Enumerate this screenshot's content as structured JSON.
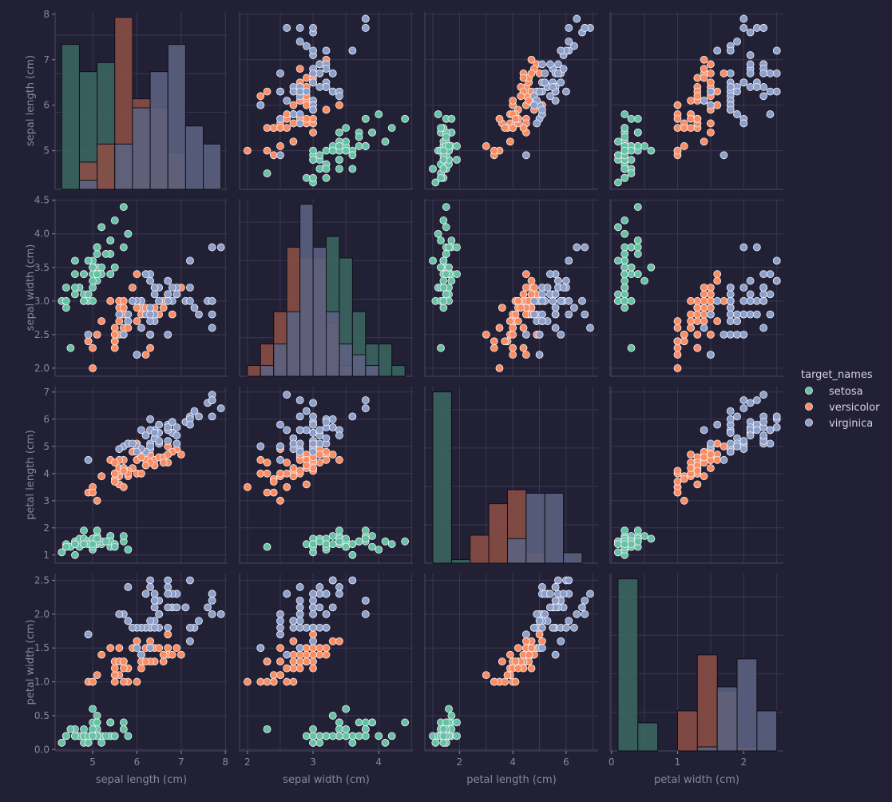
{
  "chart_data": {
    "type": "scatter",
    "variables": [
      "sepal length (cm)",
      "sepal width (cm)",
      "petal length (cm)",
      "petal width (cm)"
    ],
    "axis_ranges": [
      [
        4.15,
        8.05
      ],
      [
        1.88,
        4.52
      ],
      [
        0.7,
        7.2
      ],
      [
        -0.02,
        2.6
      ]
    ],
    "ticks": [
      [
        5,
        6,
        7,
        8
      ],
      [
        2.0,
        2.5,
        3.0,
        3.5,
        4.0,
        4.5
      ],
      [
        1,
        2,
        3,
        4,
        5,
        6,
        7
      ],
      [
        0.0,
        0.5,
        1.0,
        1.5,
        2.0,
        2.5
      ]
    ],
    "x_tick_labels": [
      [
        "5",
        "6",
        "7",
        "8"
      ],
      [
        "2",
        "3",
        "4"
      ],
      [
        "2",
        "4",
        "6"
      ],
      [
        "0",
        "1",
        "2"
      ]
    ],
    "y_tick_labels": [
      [
        "5",
        "6",
        "7",
        "8"
      ],
      [
        "2.0",
        "2.5",
        "3.0",
        "3.5",
        "4.0",
        "4.5"
      ],
      [
        "1",
        "2",
        "3",
        "4",
        "5",
        "6",
        "7"
      ],
      [
        "0.0",
        "0.5",
        "1.0",
        "1.5",
        "2.0",
        "2.5"
      ]
    ],
    "grid": true,
    "legend": {
      "title": "target_names",
      "placement": "right-center",
      "entries": [
        "setosa",
        "versicolor",
        "virginica"
      ]
    },
    "colors": {
      "setosa": "#66c2a5",
      "versicolor": "#fc8d62",
      "virginica": "#8da0cb",
      "background": "#222034",
      "grid": "#3a3852",
      "tick": "#8a879c"
    },
    "series": [
      {
        "name": "setosa",
        "values": [
          [
            5.1,
            3.5,
            1.4,
            0.2
          ],
          [
            4.9,
            3.0,
            1.4,
            0.2
          ],
          [
            4.7,
            3.2,
            1.3,
            0.2
          ],
          [
            4.6,
            3.1,
            1.5,
            0.2
          ],
          [
            5.0,
            3.6,
            1.4,
            0.2
          ],
          [
            5.4,
            3.9,
            1.7,
            0.4
          ],
          [
            4.6,
            3.4,
            1.4,
            0.3
          ],
          [
            5.0,
            3.4,
            1.5,
            0.2
          ],
          [
            4.4,
            2.9,
            1.4,
            0.2
          ],
          [
            4.9,
            3.1,
            1.5,
            0.1
          ],
          [
            5.4,
            3.7,
            1.5,
            0.2
          ],
          [
            4.8,
            3.4,
            1.6,
            0.2
          ],
          [
            4.8,
            3.0,
            1.4,
            0.1
          ],
          [
            4.3,
            3.0,
            1.1,
            0.1
          ],
          [
            5.8,
            4.0,
            1.2,
            0.2
          ],
          [
            5.7,
            4.4,
            1.5,
            0.4
          ],
          [
            5.4,
            3.9,
            1.3,
            0.4
          ],
          [
            5.1,
            3.5,
            1.4,
            0.3
          ],
          [
            5.7,
            3.8,
            1.7,
            0.3
          ],
          [
            5.1,
            3.8,
            1.5,
            0.3
          ],
          [
            5.4,
            3.4,
            1.7,
            0.2
          ],
          [
            5.1,
            3.7,
            1.5,
            0.4
          ],
          [
            4.6,
            3.6,
            1.0,
            0.2
          ],
          [
            5.1,
            3.3,
            1.7,
            0.5
          ],
          [
            4.8,
            3.4,
            1.9,
            0.2
          ],
          [
            5.0,
            3.0,
            1.6,
            0.2
          ],
          [
            5.0,
            3.4,
            1.6,
            0.4
          ],
          [
            5.2,
            3.5,
            1.5,
            0.2
          ],
          [
            5.2,
            3.4,
            1.4,
            0.2
          ],
          [
            4.7,
            3.2,
            1.6,
            0.2
          ],
          [
            4.8,
            3.1,
            1.6,
            0.2
          ],
          [
            5.4,
            3.4,
            1.5,
            0.4
          ],
          [
            5.2,
            4.1,
            1.5,
            0.1
          ],
          [
            5.5,
            4.2,
            1.4,
            0.2
          ],
          [
            4.9,
            3.1,
            1.5,
            0.2
          ],
          [
            5.0,
            3.2,
            1.2,
            0.2
          ],
          [
            5.5,
            3.5,
            1.3,
            0.2
          ],
          [
            4.9,
            3.6,
            1.4,
            0.1
          ],
          [
            4.4,
            3.0,
            1.3,
            0.2
          ],
          [
            5.1,
            3.4,
            1.5,
            0.2
          ],
          [
            5.0,
            3.5,
            1.3,
            0.3
          ],
          [
            4.5,
            2.3,
            1.3,
            0.3
          ],
          [
            4.4,
            3.2,
            1.3,
            0.2
          ],
          [
            5.0,
            3.5,
            1.6,
            0.6
          ],
          [
            5.1,
            3.8,
            1.9,
            0.4
          ],
          [
            4.8,
            3.0,
            1.4,
            0.3
          ],
          [
            5.1,
            3.8,
            1.6,
            0.2
          ],
          [
            4.6,
            3.2,
            1.4,
            0.2
          ],
          [
            5.3,
            3.7,
            1.5,
            0.2
          ],
          [
            5.0,
            3.3,
            1.4,
            0.2
          ]
        ]
      },
      {
        "name": "versicolor",
        "values": [
          [
            7.0,
            3.2,
            4.7,
            1.4
          ],
          [
            6.4,
            3.2,
            4.5,
            1.5
          ],
          [
            6.9,
            3.1,
            4.9,
            1.5
          ],
          [
            5.5,
            2.3,
            4.0,
            1.3
          ],
          [
            6.5,
            2.8,
            4.6,
            1.5
          ],
          [
            5.7,
            2.8,
            4.5,
            1.3
          ],
          [
            6.3,
            3.3,
            4.7,
            1.6
          ],
          [
            4.9,
            2.4,
            3.3,
            1.0
          ],
          [
            6.6,
            2.9,
            4.6,
            1.3
          ],
          [
            5.2,
            2.7,
            3.9,
            1.4
          ],
          [
            5.0,
            2.0,
            3.5,
            1.0
          ],
          [
            5.9,
            3.0,
            4.2,
            1.5
          ],
          [
            6.0,
            2.2,
            4.0,
            1.0
          ],
          [
            6.1,
            2.9,
            4.7,
            1.4
          ],
          [
            5.6,
            2.9,
            3.6,
            1.3
          ],
          [
            6.7,
            3.1,
            4.4,
            1.4
          ],
          [
            5.6,
            3.0,
            4.5,
            1.5
          ],
          [
            5.8,
            2.7,
            4.1,
            1.0
          ],
          [
            6.2,
            2.2,
            4.5,
            1.5
          ],
          [
            5.6,
            2.5,
            3.9,
            1.1
          ],
          [
            5.9,
            3.2,
            4.8,
            1.8
          ],
          [
            6.1,
            2.8,
            4.0,
            1.3
          ],
          [
            6.3,
            2.5,
            4.9,
            1.5
          ],
          [
            6.1,
            2.8,
            4.7,
            1.2
          ],
          [
            6.4,
            2.9,
            4.3,
            1.3
          ],
          [
            6.6,
            3.0,
            4.4,
            1.4
          ],
          [
            6.8,
            2.8,
            4.8,
            1.4
          ],
          [
            6.7,
            3.0,
            5.0,
            1.7
          ],
          [
            6.0,
            2.9,
            4.5,
            1.5
          ],
          [
            5.7,
            2.6,
            3.5,
            1.0
          ],
          [
            5.5,
            2.4,
            3.8,
            1.1
          ],
          [
            5.5,
            2.4,
            3.7,
            1.0
          ],
          [
            5.8,
            2.7,
            3.9,
            1.2
          ],
          [
            6.0,
            2.7,
            5.1,
            1.6
          ],
          [
            5.4,
            3.0,
            4.5,
            1.5
          ],
          [
            6.0,
            3.4,
            4.5,
            1.6
          ],
          [
            6.7,
            3.1,
            4.7,
            1.5
          ],
          [
            6.3,
            2.3,
            4.4,
            1.3
          ],
          [
            5.6,
            3.0,
            4.1,
            1.3
          ],
          [
            5.5,
            2.5,
            4.0,
            1.3
          ],
          [
            5.5,
            2.6,
            4.4,
            1.2
          ],
          [
            6.1,
            3.0,
            4.6,
            1.4
          ],
          [
            5.8,
            2.6,
            4.0,
            1.2
          ],
          [
            5.0,
            2.3,
            3.3,
            1.0
          ],
          [
            5.6,
            2.7,
            4.2,
            1.3
          ],
          [
            5.7,
            3.0,
            4.2,
            1.2
          ],
          [
            5.7,
            2.9,
            4.2,
            1.3
          ],
          [
            6.2,
            2.9,
            4.3,
            1.3
          ],
          [
            5.1,
            2.5,
            3.0,
            1.1
          ],
          [
            5.7,
            2.8,
            4.1,
            1.3
          ]
        ]
      },
      {
        "name": "virginica",
        "values": [
          [
            6.3,
            3.3,
            6.0,
            2.5
          ],
          [
            5.8,
            2.7,
            5.1,
            1.9
          ],
          [
            7.1,
            3.0,
            5.9,
            2.1
          ],
          [
            6.3,
            2.9,
            5.6,
            1.8
          ],
          [
            6.5,
            3.0,
            5.8,
            2.2
          ],
          [
            7.6,
            3.0,
            6.6,
            2.1
          ],
          [
            4.9,
            2.5,
            4.5,
            1.7
          ],
          [
            7.3,
            2.9,
            6.3,
            1.8
          ],
          [
            6.7,
            2.5,
            5.8,
            1.8
          ],
          [
            7.2,
            3.6,
            6.1,
            2.5
          ],
          [
            6.5,
            3.2,
            5.1,
            2.0
          ],
          [
            6.4,
            2.7,
            5.3,
            1.9
          ],
          [
            6.8,
            3.0,
            5.5,
            2.1
          ],
          [
            5.7,
            2.5,
            5.0,
            2.0
          ],
          [
            5.8,
            2.8,
            5.1,
            2.4
          ],
          [
            6.4,
            3.2,
            5.3,
            2.3
          ],
          [
            6.5,
            3.0,
            5.5,
            1.8
          ],
          [
            7.7,
            3.8,
            6.7,
            2.2
          ],
          [
            7.7,
            2.6,
            6.9,
            2.3
          ],
          [
            6.0,
            2.2,
            5.0,
            1.5
          ],
          [
            6.9,
            3.2,
            5.7,
            2.3
          ],
          [
            5.6,
            2.8,
            4.9,
            2.0
          ],
          [
            7.7,
            2.8,
            6.7,
            2.0
          ],
          [
            6.3,
            2.7,
            4.9,
            1.8
          ],
          [
            6.7,
            3.3,
            5.7,
            2.1
          ],
          [
            7.2,
            3.2,
            6.0,
            1.8
          ],
          [
            6.2,
            2.8,
            4.8,
            1.8
          ],
          [
            6.1,
            3.0,
            4.9,
            1.8
          ],
          [
            6.4,
            2.8,
            5.6,
            2.1
          ],
          [
            7.2,
            3.0,
            5.8,
            1.6
          ],
          [
            7.4,
            2.8,
            6.1,
            1.9
          ],
          [
            7.9,
            3.8,
            6.4,
            2.0
          ],
          [
            6.4,
            2.8,
            5.6,
            2.2
          ],
          [
            6.3,
            2.8,
            5.1,
            1.5
          ],
          [
            6.1,
            2.6,
            5.6,
            1.4
          ],
          [
            7.7,
            3.0,
            6.1,
            2.3
          ],
          [
            6.3,
            3.4,
            5.6,
            2.4
          ],
          [
            6.4,
            3.1,
            5.5,
            1.8
          ],
          [
            6.0,
            3.0,
            4.8,
            1.8
          ],
          [
            6.9,
            3.1,
            5.4,
            2.1
          ],
          [
            6.7,
            3.1,
            5.6,
            2.4
          ],
          [
            6.9,
            3.1,
            5.1,
            2.3
          ],
          [
            5.8,
            2.7,
            5.1,
            1.9
          ],
          [
            6.8,
            3.2,
            5.9,
            2.3
          ],
          [
            6.7,
            3.3,
            5.7,
            2.5
          ],
          [
            6.7,
            3.0,
            5.2,
            2.3
          ],
          [
            6.3,
            2.5,
            5.0,
            1.9
          ],
          [
            6.5,
            3.0,
            5.2,
            2.0
          ],
          [
            6.2,
            3.4,
            5.4,
            2.3
          ],
          [
            5.9,
            3.0,
            5.1,
            1.8
          ]
        ]
      }
    ],
    "histograms": [
      {
        "edges": [
          4.3,
          4.7,
          5.1,
          5.5,
          5.9,
          6.3,
          6.7,
          7.1,
          7.5,
          7.9
        ],
        "counts": {
          "setosa": [
            16,
            13,
            14,
            5,
            1,
            1,
            0,
            0,
            0
          ],
          "versicolor": [
            0,
            3,
            5,
            19,
            10,
            9,
            4,
            0,
            0
          ],
          "virginica": [
            0,
            1,
            0,
            5,
            9,
            13,
            16,
            7,
            5
          ]
        }
      },
      {
        "edges": [
          2.0,
          2.2,
          2.4,
          2.6,
          2.8,
          3.0,
          3.2,
          3.4,
          3.6,
          3.8,
          4.0,
          4.2,
          4.4
        ],
        "counts": {
          "setosa": [
            0,
            1,
            0,
            0,
            2,
            10,
            13,
            11,
            6,
            3,
            3,
            1
          ],
          "versicolor": [
            1,
            3,
            6,
            12,
            11,
            11,
            5,
            1,
            0,
            0,
            0,
            0
          ],
          "virginica": [
            0,
            1,
            3,
            6,
            16,
            12,
            6,
            3,
            2,
            1,
            0,
            0
          ]
        }
      },
      {
        "edges": [
          1.0,
          1.7,
          2.4,
          3.1,
          3.8,
          4.5,
          5.2,
          5.9,
          6.6
        ],
        "counts": {
          "setosa": [
            49,
            1,
            0,
            0,
            0,
            0,
            0,
            0
          ],
          "versicolor": [
            0,
            0,
            8,
            17,
            21,
            3,
            0,
            0
          ],
          "virginica": [
            0,
            0,
            0,
            0,
            7,
            20,
            20,
            3
          ]
        }
      },
      {
        "edges": [
          0.1,
          0.4,
          0.7,
          1.0,
          1.3,
          1.6,
          1.9,
          2.2,
          2.5
        ],
        "counts": {
          "setosa": [
            43,
            7,
            0,
            0,
            0,
            0,
            0,
            0
          ],
          "versicolor": [
            0,
            0,
            0,
            10,
            24,
            15,
            1,
            0
          ],
          "virginica": [
            0,
            0,
            0,
            0,
            1,
            16,
            23,
            10
          ]
        }
      }
    ]
  }
}
